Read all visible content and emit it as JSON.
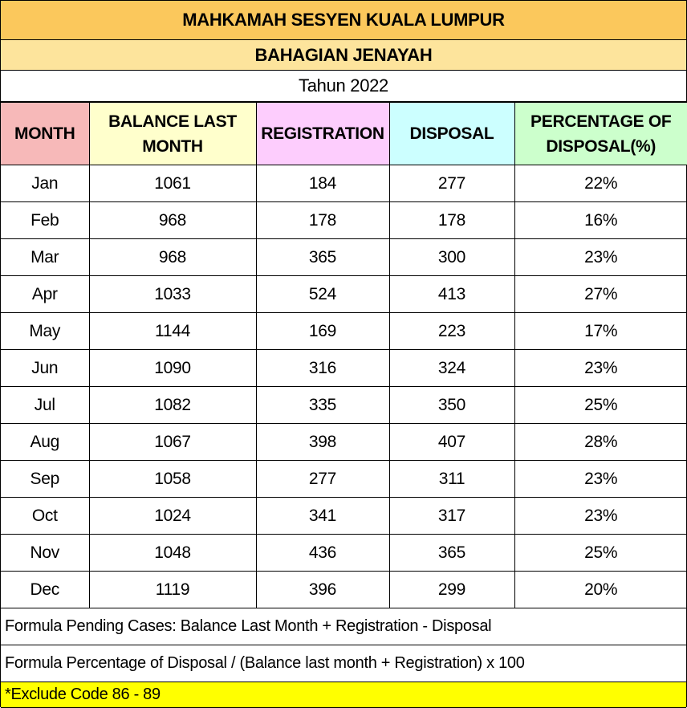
{
  "header": {
    "title": "MAHKAMAH SESYEN KUALA LUMPUR",
    "subtitle": "BAHAGIAN JENAYAH",
    "year": "Tahun 2022"
  },
  "table": {
    "columns": [
      {
        "label": "MONTH",
        "color": "#f7b9b9"
      },
      {
        "label": "BALANCE LAST MONTH",
        "color": "#ffffcc"
      },
      {
        "label": "REGISTRATION",
        "color": "#fdcdfd"
      },
      {
        "label": "DISPOSAL",
        "color": "#ccffff"
      },
      {
        "label": "PERCENTAGE OF DISPOSAL(%)",
        "color": "#ccffcc"
      }
    ],
    "rows": [
      [
        "Jan",
        "1061",
        "184",
        "277",
        "22%"
      ],
      [
        "Feb",
        "968",
        "178",
        "178",
        "16%"
      ],
      [
        "Mar",
        "968",
        "365",
        "300",
        "23%"
      ],
      [
        "Apr",
        "1033",
        "524",
        "413",
        "27%"
      ],
      [
        "May",
        "1144",
        "169",
        "223",
        "17%"
      ],
      [
        "Jun",
        "1090",
        "316",
        "324",
        "23%"
      ],
      [
        "Jul",
        "1082",
        "335",
        "350",
        "25%"
      ],
      [
        "Aug",
        "1067",
        "398",
        "407",
        "28%"
      ],
      [
        "Sep",
        "1058",
        "277",
        "311",
        "23%"
      ],
      [
        "Oct",
        "1024",
        "341",
        "317",
        "23%"
      ],
      [
        "Nov",
        "1048",
        "436",
        "365",
        "25%"
      ],
      [
        "Dec",
        "1119",
        "396",
        "299",
        "20%"
      ]
    ]
  },
  "notes": [
    "Formula Pending Cases: Balance Last Month + Registration - Disposal",
    "Formula Percentage of Disposal / (Balance last month + Registration) x 100",
    "*Exclude Code 86 - 89"
  ]
}
